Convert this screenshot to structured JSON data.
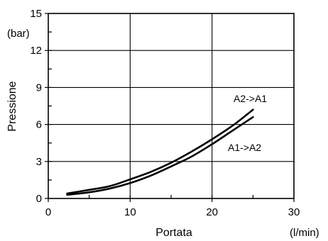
{
  "chart_data": {
    "type": "line",
    "xlabel": "Portata",
    "x_unit": "(l/min)",
    "ylabel": "Pressione",
    "y_unit": "(bar)",
    "xlim": [
      0,
      30
    ],
    "ylim": [
      0,
      15
    ],
    "x_ticks": [
      0,
      10,
      20,
      30
    ],
    "y_ticks": [
      0,
      3,
      6,
      9,
      12,
      15
    ],
    "x_minor_step": 5,
    "y_minor_step": 1.5,
    "grid": true,
    "series": [
      {
        "name": "A2->A1",
        "x": [
          2.3,
          5,
          7.5,
          10,
          12.5,
          15,
          17.5,
          20,
          22.5,
          25
        ],
        "y": [
          0.4,
          0.7,
          1.0,
          1.55,
          2.15,
          2.9,
          3.8,
          4.8,
          5.9,
          7.2
        ]
      },
      {
        "name": "A1->A2",
        "x": [
          2.3,
          5,
          7.5,
          10,
          12.5,
          15,
          17.5,
          20,
          22.5,
          25
        ],
        "y": [
          0.3,
          0.5,
          0.8,
          1.25,
          1.85,
          2.6,
          3.4,
          4.4,
          5.5,
          6.6
        ]
      }
    ]
  }
}
